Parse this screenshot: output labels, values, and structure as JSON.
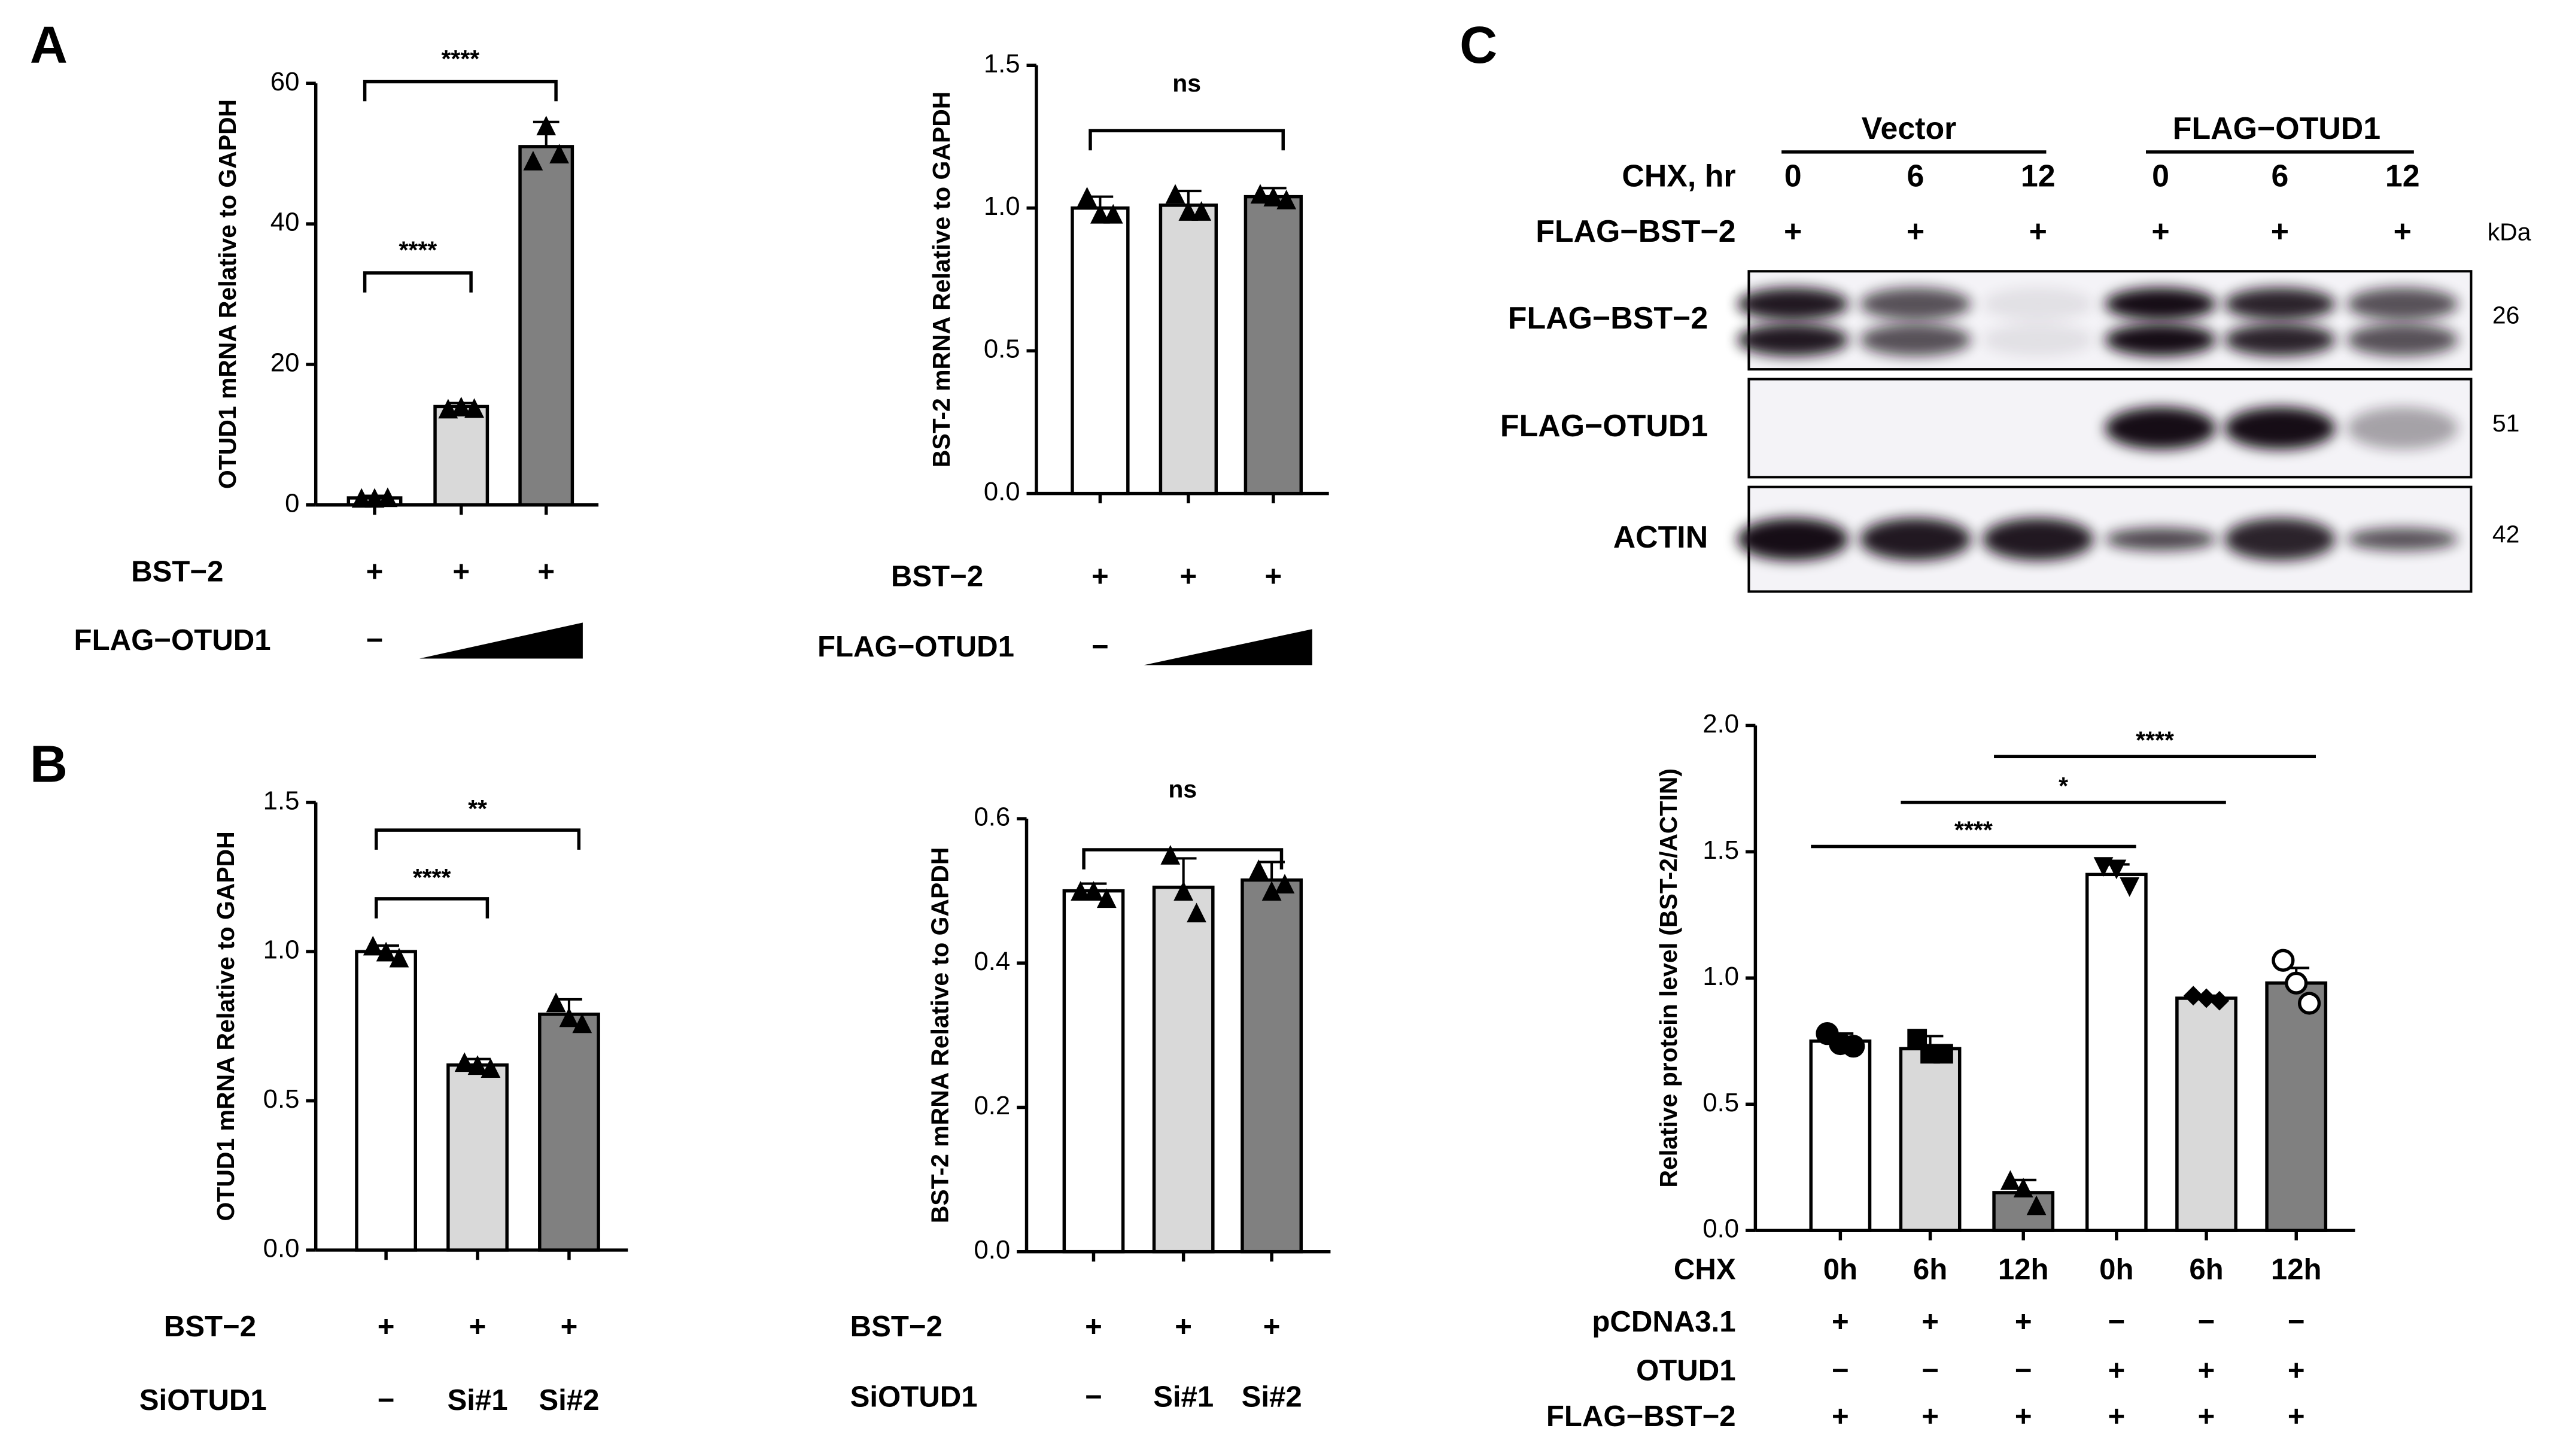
{
  "panels": [
    "A",
    "B",
    "C"
  ],
  "blot": {
    "groups": [
      "Vector",
      "FLAG−OTUD1"
    ],
    "time_label": "CHX, hr",
    "times": [
      "0",
      "6",
      "12",
      "0",
      "6",
      "12"
    ],
    "row_label": "FLAG−BST−2",
    "row_marks": [
      "+",
      "+",
      "+",
      "+",
      "+",
      "+"
    ],
    "unit": "kDa",
    "bands": [
      {
        "label": "FLAG−BST−2",
        "size": "26"
      },
      {
        "label": "FLAG−OTUD1",
        "size": "51"
      },
      {
        "label": "ACTIN",
        "size": "42"
      }
    ]
  },
  "chart_data": [
    {
      "type": "bar",
      "ylabel": "OTUD1 mRNA Relative to GAPDH",
      "ylim": [
        0,
        60
      ],
      "yticks": [
        0,
        20,
        40,
        60
      ],
      "values": [
        1,
        14,
        51
      ],
      "errors": [
        0.3,
        0.5,
        3.5
      ],
      "colors": [
        "#ffffff",
        "#d9d9d9",
        "#808080"
      ],
      "markers": [
        "triangle",
        "triangle",
        "triangle"
      ],
      "points": [
        [
          1,
          1,
          1.1
        ],
        [
          13.7,
          14,
          13.8
        ],
        [
          49,
          54,
          50
        ]
      ],
      "comparisons": [
        {
          "from": 0,
          "to": 2,
          "label": "****"
        },
        {
          "from": 0,
          "to": 1,
          "label": "****"
        }
      ],
      "brackets": true,
      "conditions": [
        {
          "label": "BST−2",
          "marks": [
            "+",
            "+",
            "+"
          ]
        },
        {
          "label": "FLAG−OTUD1",
          "marks": [
            "−"
          ],
          "ramp": true
        }
      ]
    },
    {
      "type": "bar",
      "ylabel": "BST-2 mRNA Relative to GAPDH",
      "ylim": [
        0,
        1.5
      ],
      "yticks": [
        {
          "value": 0,
          "label": "0.0"
        },
        {
          "value": 0.5,
          "label": "0.5"
        },
        {
          "value": 1,
          "label": "1.0"
        },
        {
          "value": 1.5,
          "label": "1.5"
        }
      ],
      "values": [
        1.0,
        1.01,
        1.04
      ],
      "errors": [
        0.04,
        0.05,
        0.03
      ],
      "colors": [
        "#ffffff",
        "#d9d9d9",
        "#808080"
      ],
      "markers": [
        "triangle",
        "triangle",
        "triangle"
      ],
      "points": [
        [
          1.04,
          0.98,
          0.98
        ],
        [
          1.05,
          0.99,
          0.99
        ],
        [
          1.05,
          1.04,
          1.03
        ]
      ],
      "comparisons": [
        {
          "from": 0,
          "to": 2,
          "label": "ns"
        }
      ],
      "brackets": true,
      "conditions": [
        {
          "label": "BST−2",
          "marks": [
            "+",
            "+",
            "+"
          ]
        },
        {
          "label": "FLAG−OTUD1",
          "marks": [
            "−"
          ],
          "ramp": true
        }
      ]
    },
    {
      "type": "bar",
      "ylabel": "OTUD1 mRNA Relative to GAPDH",
      "ylim": [
        0,
        1.5
      ],
      "yticks": [
        {
          "value": 0,
          "label": "0.0"
        },
        {
          "value": 0.5,
          "label": "0.5"
        },
        {
          "value": 1,
          "label": "1.0"
        },
        {
          "value": 1.5,
          "label": "1.5"
        }
      ],
      "values": [
        1.0,
        0.62,
        0.79
      ],
      "errors": [
        0.02,
        0.02,
        0.05
      ],
      "colors": [
        "#ffffff",
        "#d9d9d9",
        "#808080"
      ],
      "markers": [
        "triangle",
        "triangle",
        "triangle"
      ],
      "points": [
        [
          1.02,
          1.0,
          0.98
        ],
        [
          0.63,
          0.62,
          0.61
        ],
        [
          0.83,
          0.78,
          0.76
        ]
      ],
      "comparisons": [
        {
          "from": 0,
          "to": 1,
          "label": "****"
        },
        {
          "from": 0,
          "to": 2,
          "label": "**"
        }
      ],
      "brackets": true,
      "conditions": [
        {
          "label": "BST−2",
          "marks": [
            "+",
            "+",
            "+"
          ]
        },
        {
          "label": "SiOTUD1",
          "marks": [
            "−",
            "Si#1",
            "Si#2"
          ]
        }
      ]
    },
    {
      "type": "bar",
      "ylabel": "BST-2 mRNA Relative to GAPDH",
      "ylim": [
        0,
        0.6
      ],
      "yticks": [
        {
          "value": 0,
          "label": "0.0"
        },
        {
          "value": 0.2,
          "label": "0.2"
        },
        {
          "value": 0.4,
          "label": "0.4"
        },
        {
          "value": 0.6,
          "label": "0.6"
        }
      ],
      "values": [
        0.5,
        0.505,
        0.515
      ],
      "errors": [
        0.01,
        0.04,
        0.025
      ],
      "colors": [
        "#ffffff",
        "#d9d9d9",
        "#808080"
      ],
      "markers": [
        "triangle",
        "triangle",
        "triangle"
      ],
      "points": [
        [
          0.5,
          0.5,
          0.49
        ],
        [
          0.55,
          0.5,
          0.47
        ],
        [
          0.53,
          0.5,
          0.51
        ]
      ],
      "comparisons": [
        {
          "from": 0,
          "to": 2,
          "label": "ns"
        }
      ],
      "brackets": true,
      "conditions": [
        {
          "label": "BST−2",
          "marks": [
            "+",
            "+",
            "+"
          ]
        },
        {
          "label": "SiOTUD1",
          "marks": [
            "−",
            "Si#1",
            "Si#2"
          ]
        }
      ]
    },
    {
      "type": "bar",
      "ylabel": "Relative protein level (BST-2/ACTIN)",
      "ylim": [
        0,
        2
      ],
      "yticks": [
        {
          "value": 0,
          "label": "0.0"
        },
        {
          "value": 0.5,
          "label": "0.5"
        },
        {
          "value": 1,
          "label": "1.0"
        },
        {
          "value": 1.5,
          "label": "1.5"
        },
        {
          "value": 2,
          "label": "2.0"
        }
      ],
      "x_label": "CHX",
      "categories": [
        "0h",
        "6h",
        "12h",
        "0h",
        "6h",
        "12h"
      ],
      "values": [
        0.75,
        0.72,
        0.15,
        1.41,
        0.92,
        0.98
      ],
      "errors": [
        0.03,
        0.05,
        0.05,
        0.04,
        0.01,
        0.06
      ],
      "colors": [
        "#ffffff",
        "#d9d9d9",
        "#808080",
        "#ffffff",
        "#d9d9d9",
        "#808080"
      ],
      "markers": [
        "circle",
        "square",
        "triangle",
        "triangle-down",
        "diamond",
        "circle-open"
      ],
      "points": [
        [
          0.78,
          0.74,
          0.73
        ],
        [
          0.76,
          0.7,
          0.7
        ],
        [
          0.2,
          0.17,
          0.1
        ],
        [
          1.44,
          1.43,
          1.36
        ],
        [
          0.93,
          0.92,
          0.91
        ],
        [
          1.07,
          0.98,
          0.9
        ]
      ],
      "comparisons": [
        {
          "from": 0,
          "to": 3,
          "label": "****"
        },
        {
          "from": 1,
          "to": 4,
          "label": "*"
        },
        {
          "from": 2,
          "to": 5,
          "label": "****"
        }
      ],
      "brackets": false,
      "conditions": [
        {
          "label": "pCDNA3.1",
          "marks": [
            "+",
            "+",
            "+",
            "−",
            "−",
            "−"
          ]
        },
        {
          "label": "OTUD1",
          "marks": [
            "−",
            "−",
            "−",
            "+",
            "+",
            "+"
          ]
        },
        {
          "label": "FLAG−BST−2",
          "marks": [
            "+",
            "+",
            "+",
            "+",
            "+",
            "+"
          ]
        }
      ]
    }
  ]
}
